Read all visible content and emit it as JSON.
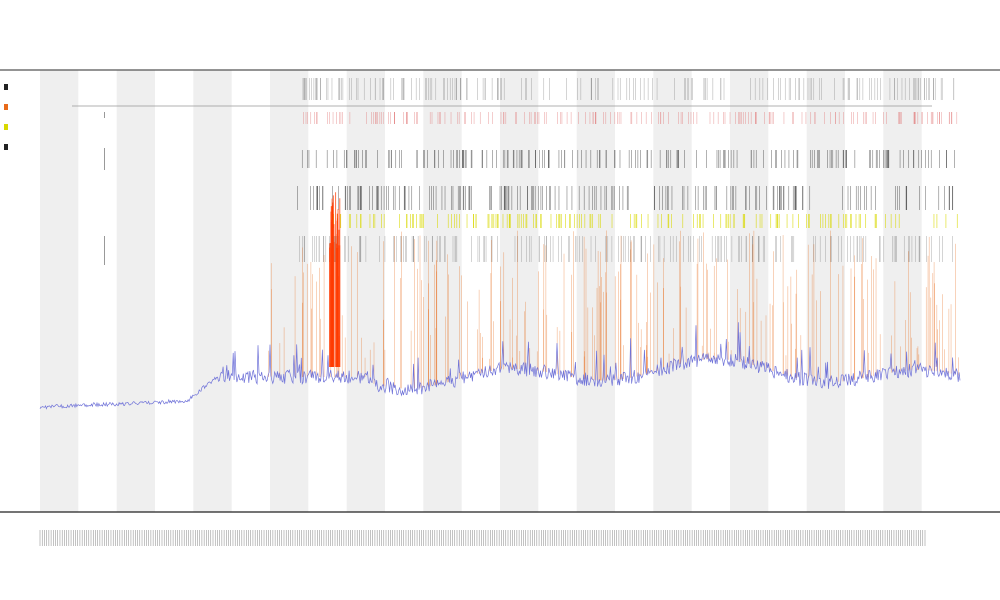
{
  "chart_data": {
    "type": "line",
    "title": "",
    "subtitle_lines": [
      "",
      ""
    ],
    "xlabel": "",
    "ylabel": "",
    "x_tick_count": 400,
    "grid_band_count": 24,
    "legend_entries": [
      "",
      "",
      "",
      ""
    ],
    "legend_placement": "left",
    "colors": {
      "baseline": "#6f72d8",
      "spike": "#e86a1a",
      "spike_hot": "#ff3b00",
      "yellow_band": "#d8d800",
      "tick_dark": "#222222",
      "tick_light": "#888888",
      "band": "#efefef",
      "axis": "#222222"
    },
    "series": [
      {
        "segment": 1,
        "x_range": [
          0,
          40
        ],
        "baseline_level": 0.15,
        "trend": "flat-slightly-rising"
      },
      {
        "segment": 2,
        "x_range": [
          40,
          48
        ],
        "baseline_level_from": 0.17,
        "baseline_level_to": 0.25
      },
      {
        "segment": 3,
        "x_range": [
          48,
          90
        ],
        "baseline_level": 0.25,
        "trend": "flat"
      },
      {
        "segment": 4,
        "x_range": [
          90,
          250
        ],
        "baseline_level": 0.26,
        "trend": "noisy"
      }
    ],
    "peak": {
      "x": 80,
      "height": 0.65
    }
  }
}
